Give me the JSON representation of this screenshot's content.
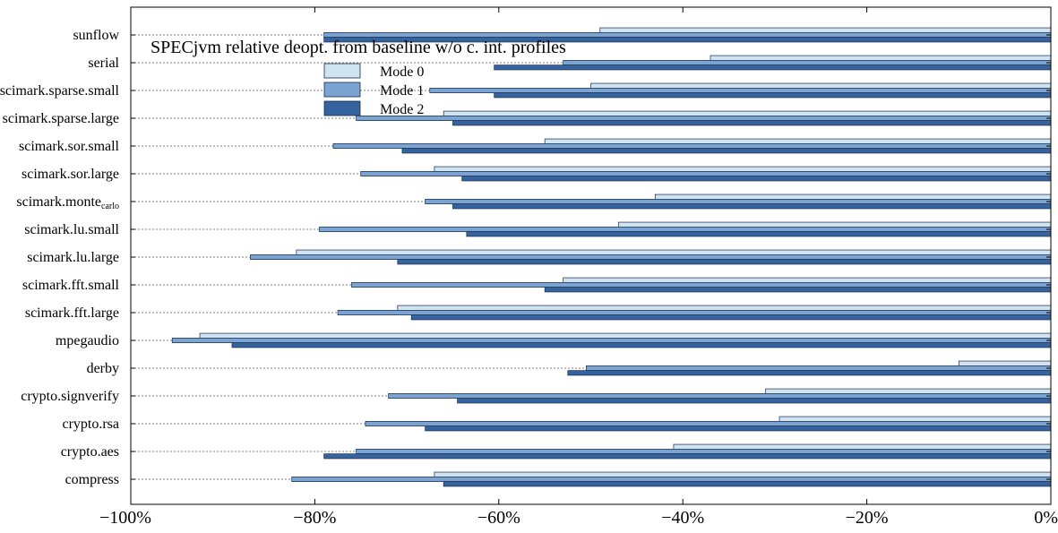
{
  "chart_data": {
    "type": "bar",
    "orientation": "horizontal",
    "title": "SPECjvm relative deopt. from baseline w/o c. int. profiles",
    "xlabel": "",
    "ylabel": "",
    "xlim": [
      -100,
      0
    ],
    "x_ticks": [
      -100,
      -80,
      -60,
      -40,
      -20,
      0
    ],
    "x_tick_labels": [
      "−100%",
      "−80%",
      "−60%",
      "−40%",
      "−20%",
      "0%"
    ],
    "grid": "horizontal dashed gridlines",
    "legend_position": "top-left",
    "categories": [
      "sunflow",
      "serial",
      "scimark.sparse.small",
      "scimark.sparse.large",
      "scimark.sor.small",
      "scimark.sor.large",
      "scimark.monte_carlo",
      "scimark.lu.small",
      "scimark.lu.large",
      "scimark.fft.small",
      "scimark.fft.large",
      "mpegaudio",
      "derby",
      "crypto.signverify",
      "crypto.rsa",
      "crypto.aes",
      "compress"
    ],
    "category_labels": [
      {
        "main": "sunflow"
      },
      {
        "main": "serial"
      },
      {
        "main": "scimark.sparse.small"
      },
      {
        "main": "scimark.sparse.large"
      },
      {
        "main": "scimark.sor.small"
      },
      {
        "main": "scimark.sor.large"
      },
      {
        "main": "scimark.monte",
        "sub": "carlo"
      },
      {
        "main": "scimark.lu.small"
      },
      {
        "main": "scimark.lu.large"
      },
      {
        "main": "scimark.fft.small"
      },
      {
        "main": "scimark.fft.large"
      },
      {
        "main": "mpegaudio"
      },
      {
        "main": "derby"
      },
      {
        "main": "crypto.signverify"
      },
      {
        "main": "crypto.rsa"
      },
      {
        "main": "crypto.aes"
      },
      {
        "main": "compress"
      }
    ],
    "series": [
      {
        "name": "Mode 0",
        "color": "#cfe3f1",
        "values": [
          -49,
          -37,
          -50,
          -66,
          -55,
          -67,
          -43,
          -47,
          -82,
          -53,
          -71,
          -92.5,
          -10,
          -31,
          -29.5,
          -41,
          -67
        ]
      },
      {
        "name": "Mode 1",
        "color": "#7ba4d2",
        "values": [
          -79,
          -53,
          -67.5,
          -75.5,
          -78,
          -75,
          -68,
          -79.5,
          -87,
          -76,
          -77.5,
          -95.5,
          -50.5,
          -72,
          -74.5,
          -75.5,
          -82.5
        ]
      },
      {
        "name": "Mode 2",
        "color": "#3563a0",
        "values": [
          -79,
          -60.5,
          -60.5,
          -65,
          -70.5,
          -64,
          -65,
          -63.5,
          -71,
          -55,
          -69.5,
          -89,
          -52.5,
          -64.5,
          -68,
          -79,
          -66
        ]
      }
    ]
  }
}
